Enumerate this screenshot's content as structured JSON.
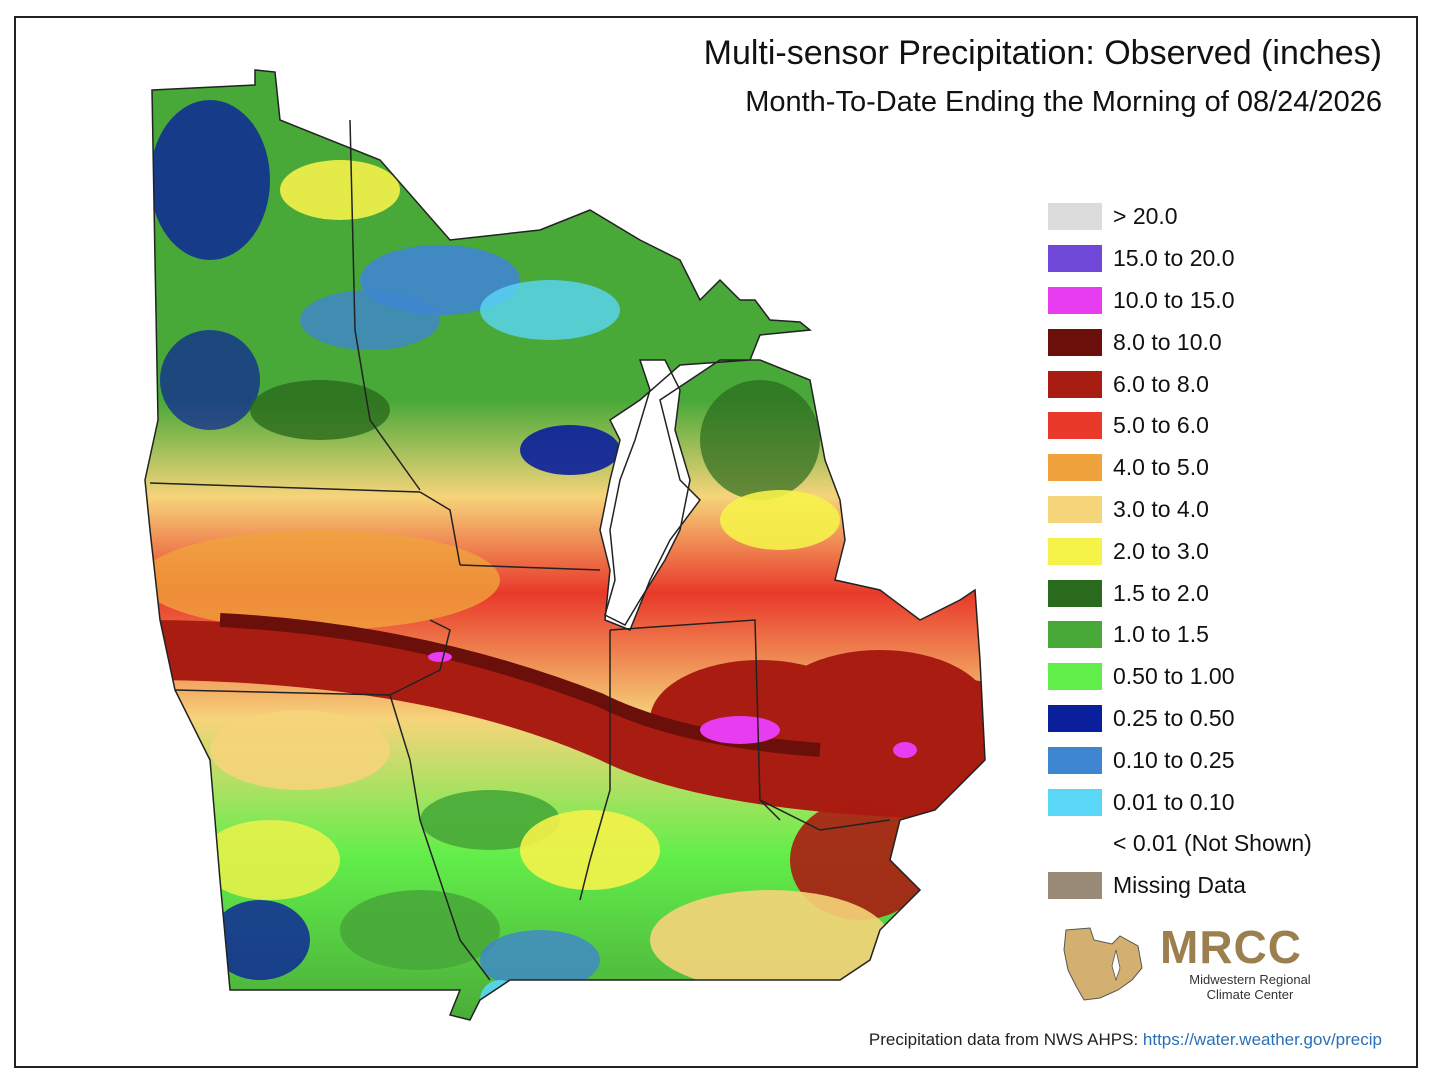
{
  "title": "Multi-sensor Precipitation: Observed (inches)",
  "subtitle": "Month-To-Date Ending the Morning of 08/24/2026",
  "legend": [
    {
      "label": "> 20.0",
      "color": "#dcdcdc"
    },
    {
      "label": "15.0 to 20.0",
      "color": "#7048d8"
    },
    {
      "label": "10.0 to 15.0",
      "color": "#e83cf0"
    },
    {
      "label": "8.0 to 10.0",
      "color": "#6a0f0a"
    },
    {
      "label": "6.0 to 8.0",
      "color": "#a81c12"
    },
    {
      "label": "5.0 to 6.0",
      "color": "#e8392a"
    },
    {
      "label": "4.0 to 5.0",
      "color": "#f0a23c"
    },
    {
      "label": "3.0 to 4.0",
      "color": "#f6d47a"
    },
    {
      "label": "2.0 to 3.0",
      "color": "#f5f24a"
    },
    {
      "label": "1.5 to 2.0",
      "color": "#2a6a1c"
    },
    {
      "label": "1.0 to 1.5",
      "color": "#48a838"
    },
    {
      "label": "0.50 to 1.00",
      "color": "#62ee4a"
    },
    {
      "label": "0.25 to 0.50",
      "color": "#0a1f9c"
    },
    {
      "label": "0.10 to 0.25",
      "color": "#3f86d0"
    },
    {
      "label": "0.01 to 0.10",
      "color": "#5ad6f6"
    },
    {
      "label": "< 0.01 (Not Shown)",
      "color": ""
    },
    {
      "label": "Missing Data",
      "color": "#9a8a78"
    }
  ],
  "logo": {
    "wordmark": "MRCC",
    "line1": "Midwestern Regional",
    "line2": "Climate Center",
    "color": "#9c7f4f"
  },
  "source": {
    "prefix": "Precipitation data from NWS AHPS: ",
    "link": "https://water.weather.gov/precip"
  }
}
